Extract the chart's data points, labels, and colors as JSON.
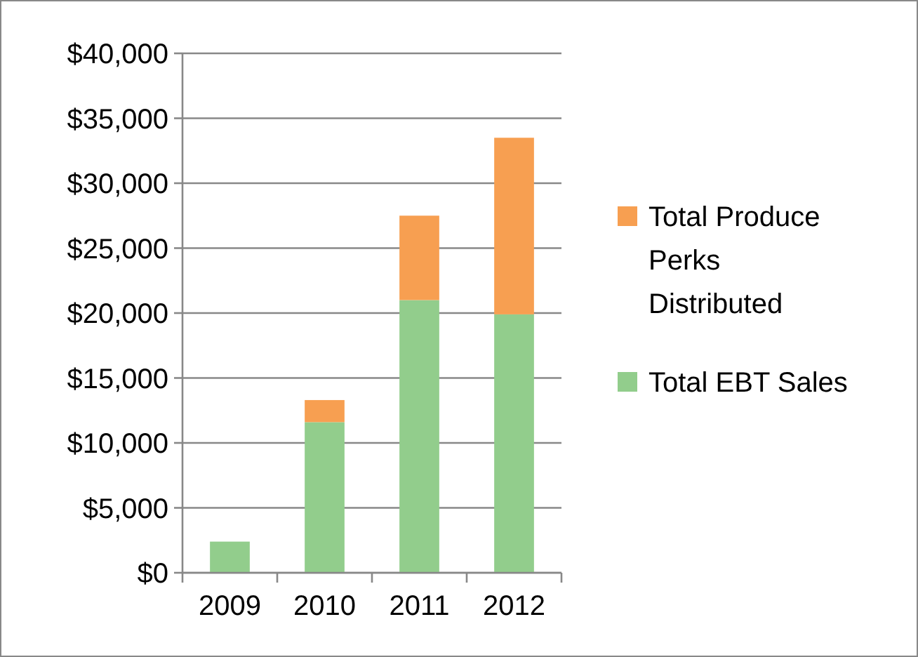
{
  "chart_data": {
    "type": "bar",
    "stacked": true,
    "categories": [
      "2009",
      "2010",
      "2011",
      "2012"
    ],
    "series": [
      {
        "name": "Total EBT Sales",
        "color": "#92cd8c",
        "values": [
          2400,
          11600,
          21000,
          19900
        ]
      },
      {
        "name": "Total Produce Perks Distributed",
        "color": "#f79f51",
        "values": [
          0,
          1700,
          6500,
          13600
        ]
      }
    ],
    "ylim": [
      0,
      40000
    ],
    "yticks": [
      {
        "value": 0,
        "label": "$0"
      },
      {
        "value": 5000,
        "label": "$5,000"
      },
      {
        "value": 10000,
        "label": "$10,000"
      },
      {
        "value": 15000,
        "label": "$15,000"
      },
      {
        "value": 20000,
        "label": "$20,000"
      },
      {
        "value": 25000,
        "label": "$25,000"
      },
      {
        "value": 30000,
        "label": "$30,000"
      },
      {
        "value": 35000,
        "label": "$35,000"
      },
      {
        "value": 40000,
        "label": "$40,000"
      }
    ],
    "grid": "y",
    "legend": "right"
  }
}
